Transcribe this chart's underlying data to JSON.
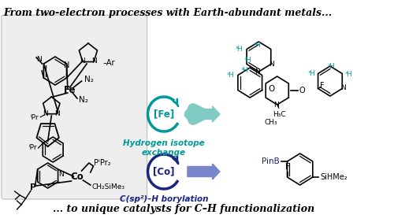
{
  "title_top": "From two-electron processes with Earth-abundant metals...",
  "title_bottom": "... to unique catalysts for C–H functionalization",
  "fe_label": "[Fe]",
  "co_label": "[Co]",
  "fe_reaction": "Hydrogen isotope\nexchange",
  "co_reaction": "C(sp²)–H borylation",
  "bg_color": "#ffffff",
  "teal_color": "#009999",
  "blue_dark": "#1a237e",
  "blue_arrow": "#7986cb",
  "teal_arrow": "#80cbc4",
  "fig_width": 5.0,
  "fig_height": 2.82,
  "dpi": 100
}
